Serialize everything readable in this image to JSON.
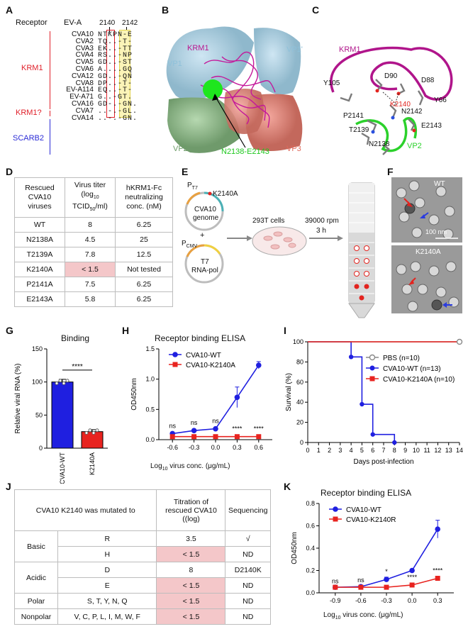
{
  "panel_letters": {
    "A": "A",
    "B": "B",
    "C": "C",
    "D": "D",
    "E": "E",
    "F": "F",
    "G": "G",
    "H": "H",
    "I": "I",
    "J": "J",
    "K": "K"
  },
  "panelA": {
    "col_receptor": "Receptor",
    "col_evA": "EV-A",
    "pos1": "2140",
    "pos2": "2142",
    "rows": [
      {
        "name": "CVA10",
        "seq": "NTKPN-E"
      },
      {
        "name": "CVA2",
        "seq": "TQ..-T-"
      },
      {
        "name": "CVA3",
        "seq": "EK..-TT"
      },
      {
        "name": "CVA4",
        "seq": "RS..-NP"
      },
      {
        "name": "CVA5",
        "seq": "GD..-ST"
      },
      {
        "name": "CVA6",
        "seq": "A....GQ"
      },
      {
        "name": "CVA12",
        "seq": "GD..-QN"
      },
      {
        "name": "CVA8",
        "seq": "DP..-T-"
      },
      {
        "name": "EV-A114",
        "seq": "EQ..-T-"
      },
      {
        "name": "EV-A71",
        "seq": "G..-GT."
      },
      {
        "name": "CVA16",
        "seq": "GD-.-GN."
      },
      {
        "name": "CVA7",
        "seq": "..-.-GL."
      },
      {
        "name": "CVA14",
        "seq": "..-.-GN."
      }
    ],
    "groups": [
      {
        "label": "KRM1",
        "color": "#e0202a"
      },
      {
        "label": "KRM1?",
        "color": "#e0202a"
      },
      {
        "label": "SCARB2",
        "color": "#2b2bd6"
      }
    ]
  },
  "panelB": {
    "krm1": "KRM1",
    "vp1": "VP1",
    "vp1p": "VP1'",
    "vp2": "VP2",
    "vp3": "VP3",
    "site": "N2138-E2143"
  },
  "panelC": {
    "krm1": "KRM1",
    "vp2": "VP2",
    "residues": [
      "D90",
      "D88",
      "Y105",
      "Y66",
      "K2140",
      "N2142",
      "P2141",
      "T2139",
      "E2143",
      "N2138"
    ]
  },
  "panelD": {
    "headers": [
      "Rescued CVA10 viruses",
      "Virus titer (log10 TCID50/ml)",
      "hKRM1-Fc neutralizing conc. (nM)"
    ],
    "header_lines": [
      [
        "Rescued",
        "CVA10",
        "viruses"
      ],
      [
        "Virus titer",
        "(log",
        "TCID",
        "/ml)"
      ],
      [
        "hKRM1-Fc",
        "neutralizing",
        "conc. (nM)"
      ]
    ],
    "rows": [
      {
        "v": "WT",
        "t": "8",
        "n": "6.25"
      },
      {
        "v": "N2138A",
        "t": "4.5",
        "n": "25"
      },
      {
        "v": "T2139A",
        "t": "7.8",
        "n": "12.5"
      },
      {
        "v": "K2140A",
        "t": "< 1.5",
        "n": "Not tested"
      },
      {
        "v": "P2141A",
        "t": "7.5",
        "n": "6.25"
      },
      {
        "v": "E2143A",
        "t": "5.8",
        "n": "6.25"
      }
    ]
  },
  "panelE": {
    "pt7": "P",
    "pt7_sub": "T7",
    "mut": "K2140A",
    "genome1": "CVA10",
    "genome2": "genome",
    "plus": "+",
    "pcmv": "P",
    "pcmv_sub": "CMV",
    "t71": "T7",
    "t72": "RNA-pol",
    "cells": "293T cells",
    "spin1": "39000 rpm",
    "spin2": "3 h"
  },
  "panelF": {
    "wt": "WT",
    "mut": "K2140A",
    "scale": "100 nm"
  },
  "chartG": {
    "type": "bar",
    "title": "Binding",
    "ylabel": "Relative viral RNA (%)",
    "categories": [
      "CVA10-WT",
      "K2140A"
    ],
    "values": [
      100,
      25
    ],
    "errors": [
      4,
      3
    ],
    "colors": [
      "#1f1fe0",
      "#e8231f"
    ],
    "ylim": [
      0,
      150
    ],
    "yticks": [
      "0",
      "50",
      "100",
      "150"
    ],
    "sig": "****"
  },
  "chartH": {
    "type": "line",
    "title": "Receptor binding ELISA",
    "ylabel": "OD450nm",
    "xlabel": "Log",
    "xlabel_sub": "10",
    "xlabel_rest": " virus conc. (μg/mL)",
    "xticks": [
      "-0.6",
      "-0.3",
      "0.0",
      "0.3",
      "0.6"
    ],
    "yticks": [
      "0.0",
      "0.5",
      "1.0",
      "1.5"
    ],
    "ylim": [
      0,
      1.5
    ],
    "x": [
      -0.6,
      -0.3,
      0.0,
      0.3,
      0.6
    ],
    "series": [
      {
        "name": "CVA10-WT",
        "color": "#1f1fe0",
        "marker": "circle",
        "values": [
          0.1,
          0.15,
          0.18,
          0.7,
          1.23
        ],
        "errors": [
          0.02,
          0.02,
          0.02,
          0.17,
          0.06
        ]
      },
      {
        "name": "CVA10-K2140A",
        "color": "#e8231f",
        "marker": "square",
        "values": [
          0.05,
          0.05,
          0.05,
          0.05,
          0.05
        ],
        "errors": [
          0,
          0,
          0,
          0,
          0
        ]
      }
    ],
    "sig": [
      "ns",
      "ns",
      "ns",
      "****",
      "****"
    ]
  },
  "chartI": {
    "type": "line",
    "ylabel": "Survival (%)",
    "xlabel": "Days post-infection",
    "xticks": [
      "0",
      "1",
      "2",
      "3",
      "4",
      "5",
      "6",
      "7",
      "8",
      "9",
      "10",
      "11",
      "12",
      "13",
      "14"
    ],
    "yticks": [
      "0",
      "20",
      "40",
      "60",
      "80",
      "100"
    ],
    "series": [
      {
        "name": "PBS (n=10)",
        "color": "#8a8a8a",
        "marker": "open-circle",
        "steps": [
          [
            0,
            100
          ],
          [
            14,
            100
          ]
        ]
      },
      {
        "name": "CVA10-WT (n=13)",
        "color": "#1f1fe0",
        "marker": "circle",
        "steps": [
          [
            0,
            100
          ],
          [
            4,
            100
          ],
          [
            4,
            85
          ],
          [
            5,
            85
          ],
          [
            5,
            38
          ],
          [
            6,
            38
          ],
          [
            6,
            8
          ],
          [
            8,
            8
          ],
          [
            8,
            0
          ]
        ]
      },
      {
        "name": "CVA10-K2140A (n=10)",
        "color": "#e8231f",
        "marker": "square",
        "steps": [
          [
            0,
            100
          ],
          [
            14,
            100
          ]
        ]
      }
    ]
  },
  "panelJ": {
    "title": "CVA10 K2140 was mutated to",
    "h2": [
      "Titration of",
      "rescued CVA10",
      "(log",
      "TCID",
      "/ml)"
    ],
    "h3": "Sequencing",
    "rows": [
      {
        "group": "Basic",
        "aa": "R",
        "titer": "3.5",
        "seq": "√",
        "pink": false
      },
      {
        "group": "",
        "aa": "H",
        "titer": "< 1.5",
        "seq": "ND",
        "pink": true
      },
      {
        "group": "Acidic",
        "aa": "D",
        "titer": "8",
        "seq": "D2140K",
        "pink": false
      },
      {
        "group": "",
        "aa": "E",
        "titer": "< 1.5",
        "seq": "ND",
        "pink": true
      },
      {
        "group": "Polar",
        "aa": "S, T, Y, N, Q",
        "titer": "< 1.5",
        "seq": "ND",
        "pink": true
      },
      {
        "group": "Nonpolar",
        "aa": "V, C, P, L, I, M, W, F",
        "titer": "< 1.5",
        "seq": "ND",
        "pink": true
      }
    ]
  },
  "chartK": {
    "type": "line",
    "title": "Receptor binding ELISA",
    "ylabel": "OD450nm",
    "xlabel": "Log",
    "xlabel_sub": "10",
    "xlabel_rest": " virus conc. (μg/mL)",
    "xticks": [
      "-0.9",
      "-0.6",
      "-0.3",
      "0.0",
      "0.3"
    ],
    "yticks": [
      "0.0",
      "0.2",
      "0.4",
      "0.6",
      "0.8"
    ],
    "ylim": [
      0,
      0.8
    ],
    "x": [
      -0.9,
      -0.6,
      -0.3,
      0.0,
      0.3
    ],
    "series": [
      {
        "name": "CVA10-WT",
        "color": "#1f1fe0",
        "marker": "circle",
        "values": [
          0.05,
          0.055,
          0.12,
          0.2,
          0.57
        ],
        "errors": [
          0.005,
          0.01,
          0.02,
          0.005,
          0.08
        ]
      },
      {
        "name": "CVA10-K2140R",
        "color": "#e8231f",
        "marker": "square",
        "values": [
          0.05,
          0.05,
          0.05,
          0.07,
          0.13
        ],
        "errors": [
          0,
          0,
          0,
          0.005,
          0.01
        ]
      }
    ],
    "sig_top": [
      "ns",
      "ns",
      "*",
      "",
      ""
    ],
    "sig_bottom": [
      "",
      "",
      "",
      "****",
      "****"
    ]
  }
}
